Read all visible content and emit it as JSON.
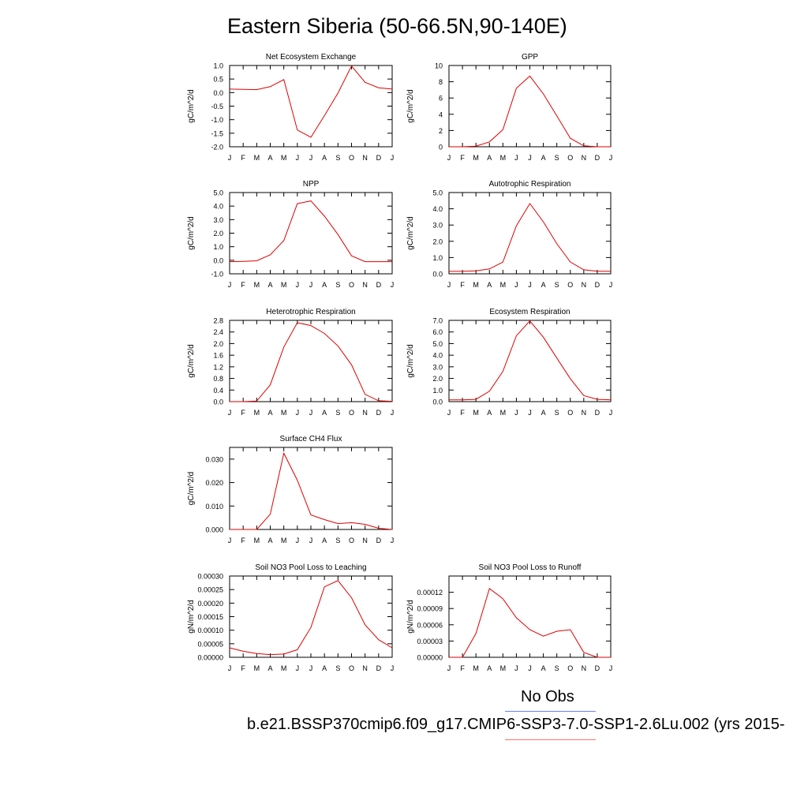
{
  "figure": {
    "title": "Eastern Siberia (50-66.5N,90-140E)",
    "legend": {
      "obs_label": "No Obs",
      "case_label": "b.e21.BSSP370cmip6.f09_g17.CMIP6-SSP3-7.0-SSP1-2.6Lu.002 (yrs 2015-",
      "obs_color": "#6f7fff",
      "case_color": "#ff7070"
    },
    "line_color": "#e00000"
  },
  "chart_data": [
    {
      "type": "line",
      "title": "Net Ecosystem Exchange",
      "ylabel": "gC/m^2/d",
      "x": [
        "J",
        "F",
        "M",
        "A",
        "M",
        "J",
        "J",
        "A",
        "S",
        "O",
        "N",
        "D",
        "J"
      ],
      "yticks": [
        "1.0",
        "0.5",
        "0.0",
        "-0.5",
        "-1.0",
        "-1.5",
        "-2.0"
      ],
      "ylim": [
        -2.0,
        1.0
      ],
      "series": [
        {
          "values": [
            0.13,
            0.12,
            0.11,
            0.22,
            0.48,
            -1.38,
            -1.65,
            -0.85,
            -0.02,
            0.98,
            0.38,
            0.18,
            0.13
          ]
        }
      ]
    },
    {
      "type": "line",
      "title": "GPP",
      "ylabel": "gC/m^2/d",
      "x": [
        "J",
        "F",
        "M",
        "A",
        "M",
        "J",
        "J",
        "A",
        "S",
        "O",
        "N",
        "D",
        "J"
      ],
      "yticks": [
        "10",
        "8",
        "6",
        "4",
        "2",
        "0"
      ],
      "ylim": [
        0,
        10
      ],
      "series": [
        {
          "values": [
            0.0,
            0.0,
            0.08,
            0.6,
            2.1,
            7.2,
            8.7,
            6.5,
            3.8,
            1.05,
            0.12,
            0.0,
            0.0
          ]
        }
      ]
    },
    {
      "type": "line",
      "title": "NPP",
      "ylabel": "gC/m^2/d",
      "x": [
        "J",
        "F",
        "M",
        "A",
        "M",
        "J",
        "J",
        "A",
        "S",
        "O",
        "N",
        "D",
        "J"
      ],
      "yticks": [
        "5.0",
        "4.0",
        "3.0",
        "2.0",
        "1.0",
        "0.0",
        "-1.0"
      ],
      "ylim": [
        -1.0,
        5.0
      ],
      "series": [
        {
          "values": [
            -0.1,
            -0.08,
            -0.04,
            0.4,
            1.45,
            4.18,
            4.38,
            3.25,
            1.9,
            0.33,
            -0.1,
            -0.1,
            -0.1
          ]
        }
      ]
    },
    {
      "type": "line",
      "title": "Autotrophic Respiration",
      "ylabel": "gC/m^2/d",
      "x": [
        "J",
        "F",
        "M",
        "A",
        "M",
        "J",
        "J",
        "A",
        "S",
        "O",
        "N",
        "D",
        "J"
      ],
      "yticks": [
        "5.0",
        "4.0",
        "3.0",
        "2.0",
        "1.0",
        "0.0"
      ],
      "ylim": [
        0.0,
        5.0
      ],
      "series": [
        {
          "values": [
            0.15,
            0.15,
            0.18,
            0.3,
            0.72,
            2.95,
            4.32,
            3.2,
            1.85,
            0.73,
            0.25,
            0.16,
            0.15
          ]
        }
      ]
    },
    {
      "type": "line",
      "title": "Heterotrophic Respiration",
      "ylabel": "gC/m^2/d",
      "x": [
        "J",
        "F",
        "M",
        "A",
        "M",
        "J",
        "J",
        "A",
        "S",
        "O",
        "N",
        "D",
        "J"
      ],
      "yticks": [
        "2.8",
        "2.4",
        "2.0",
        "1.6",
        "1.2",
        "0.8",
        "0.4",
        "0.0"
      ],
      "ylim": [
        0.0,
        2.8
      ],
      "series": [
        {
          "values": [
            0.0,
            0.0,
            0.02,
            0.58,
            1.88,
            2.72,
            2.62,
            2.35,
            1.92,
            1.27,
            0.25,
            0.03,
            0.01
          ]
        }
      ]
    },
    {
      "type": "line",
      "title": "Ecosystem Respiration",
      "ylabel": "gC/m^2/d",
      "x": [
        "J",
        "F",
        "M",
        "A",
        "M",
        "J",
        "J",
        "A",
        "S",
        "O",
        "N",
        "D",
        "J"
      ],
      "yticks": [
        "7.0",
        "6.0",
        "5.0",
        "4.0",
        "3.0",
        "2.0",
        "1.0",
        "0.0"
      ],
      "ylim": [
        0.0,
        7.0
      ],
      "series": [
        {
          "values": [
            0.15,
            0.15,
            0.2,
            0.9,
            2.6,
            5.67,
            6.95,
            5.55,
            3.75,
            1.98,
            0.52,
            0.2,
            0.15
          ]
        }
      ]
    },
    {
      "type": "line",
      "title": "Surface CH4 Flux",
      "ylabel": "gC/m^2/d",
      "x": [
        "J",
        "F",
        "M",
        "A",
        "M",
        "J",
        "J",
        "A",
        "S",
        "O",
        "N",
        "D",
        "J"
      ],
      "yticks": [
        "0.030",
        "0.020",
        "0.010",
        "0.000"
      ],
      "ylim": [
        0.0,
        0.035
      ],
      "series": [
        {
          "values": [
            0.0,
            0.0,
            0.0,
            0.0065,
            0.0325,
            0.021,
            0.0062,
            0.0042,
            0.0025,
            0.0029,
            0.0022,
            0.0005,
            0.0
          ]
        }
      ]
    },
    {
      "type": "line",
      "title": "Soil NO3 Pool Loss to Leaching",
      "ylabel": "gN/m^2/d",
      "x": [
        "J",
        "F",
        "M",
        "A",
        "M",
        "J",
        "J",
        "A",
        "S",
        "O",
        "N",
        "D",
        "J"
      ],
      "yticks": [
        "0.00030",
        "0.00025",
        "0.00020",
        "0.00015",
        "0.00010",
        "0.00005",
        "0.00000"
      ],
      "ylim": [
        0.0,
        0.0003
      ],
      "series": [
        {
          "values": [
            3.5e-05,
            2.2e-05,
            1.4e-05,
            1e-05,
            1.2e-05,
            2.8e-05,
            0.00011,
            0.00026,
            0.000283,
            0.00022,
            0.00012,
            6.5e-05,
            3.5e-05
          ]
        }
      ]
    },
    {
      "type": "line",
      "title": "Soil NO3 Pool Loss to Runoff",
      "ylabel": "gN/m^2/d",
      "x": [
        "J",
        "F",
        "M",
        "A",
        "M",
        "J",
        "J",
        "A",
        "S",
        "O",
        "N",
        "D",
        "J"
      ],
      "yticks": [
        "0.00012",
        "0.00009",
        "0.00006",
        "0.00003",
        "0.00000"
      ],
      "ylim": [
        0.0,
        0.00015
      ],
      "series": [
        {
          "values": [
            0.0,
            0.0,
            4.4e-05,
            0.000127,
            0.000108,
            7.3e-05,
            5.1e-05,
            3.9e-05,
            4.8e-05,
            5.1e-05,
            9e-06,
            0.0,
            0.0
          ]
        }
      ]
    }
  ]
}
